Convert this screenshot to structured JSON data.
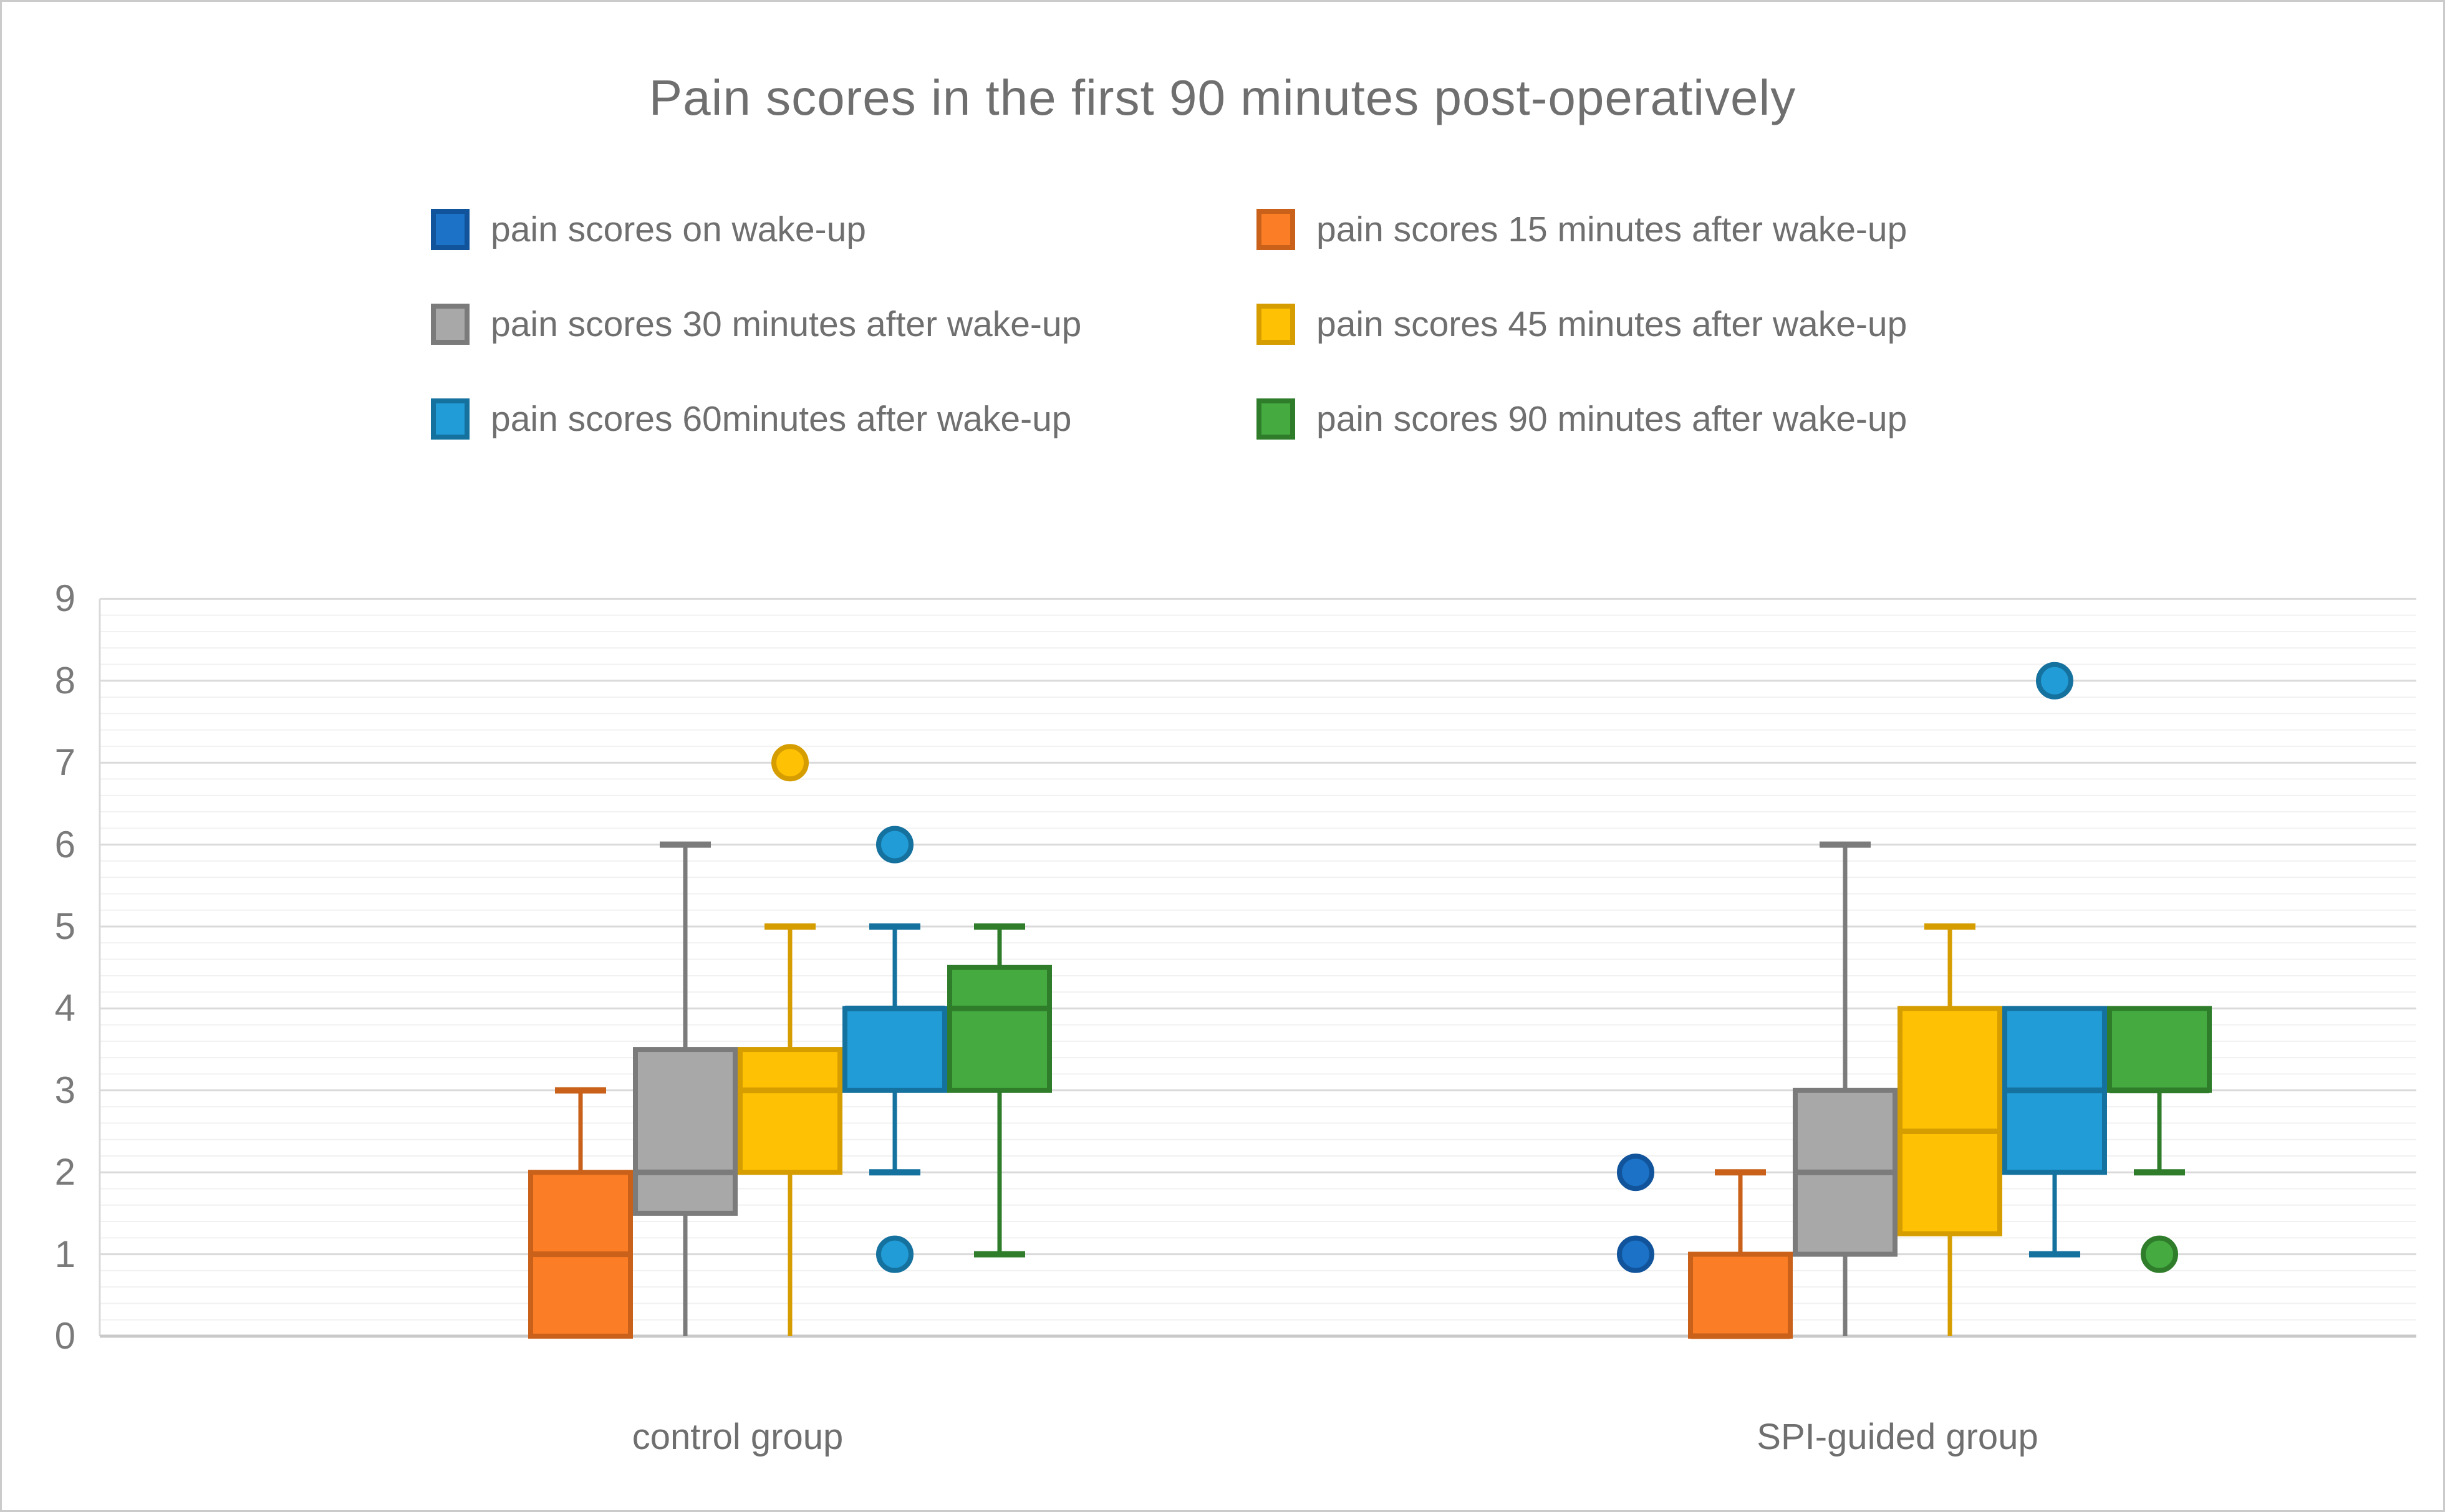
{
  "chart_data": {
    "type": "boxplot",
    "title": "Pain scores in the first 90 minutes post-operatively",
    "categories": [
      "control group",
      "SPI-guided group"
    ],
    "legend_position": "top",
    "grid": "major and minor horizontal gridlines",
    "y_axis": {
      "min": 0,
      "max": 9,
      "major_unit": 1,
      "minor_unit": 0.2,
      "tick_labels": [
        "0",
        "1",
        "2",
        "3",
        "4",
        "5",
        "6",
        "7",
        "8",
        "9"
      ]
    },
    "colors": {
      "grid_major": "#dadada",
      "grid_minor": "#f1f1f1",
      "axis_line": "#c9c9c9",
      "text": "#6f6f6f"
    },
    "series": [
      {
        "name": "pain scores on wake-up",
        "fill": "#1b72c6",
        "border": "#11549b",
        "groups": [
          null,
          {
            "q1": null,
            "median": null,
            "q3": null,
            "whisker_low": null,
            "whisker_high": null,
            "outliers": [
              2,
              1
            ]
          }
        ]
      },
      {
        "name": "pain scores 15 minutes after wake-up",
        "fill": "#fb7d26",
        "border": "#c9611a",
        "groups": [
          {
            "q1": 0,
            "median": 1,
            "q3": 2,
            "whisker_low": 0,
            "whisker_high": 3,
            "outliers": []
          },
          {
            "q1": 0,
            "median": 0,
            "q3": 1,
            "whisker_low": 0,
            "whisker_high": 2,
            "outliers": []
          }
        ]
      },
      {
        "name": "pain scores 30 minutes after wake-up",
        "fill": "#a8a8a8",
        "border": "#7b7b7b",
        "groups": [
          {
            "q1": 1.5,
            "median": 2,
            "q3": 3.5,
            "whisker_low": 0,
            "whisker_high": 6,
            "outliers": []
          },
          {
            "q1": 1,
            "median": 2,
            "q3": 3,
            "whisker_low": 0,
            "whisker_high": 6,
            "outliers": []
          }
        ]
      },
      {
        "name": "pain scores 45 minutes after wake-up",
        "fill": "#ffc103",
        "border": "#d59d00",
        "groups": [
          {
            "q1": 2,
            "median": 3,
            "q3": 3.5,
            "whisker_low": 0,
            "whisker_high": 5,
            "outliers": [
              7
            ]
          },
          {
            "q1": 1.25,
            "median": 2.5,
            "q3": 4,
            "whisker_low": 0,
            "whisker_high": 5,
            "outliers": []
          }
        ]
      },
      {
        "name": "pain scores 60minutes after wake-up",
        "fill": "#219cd7",
        "border": "#15719e",
        "groups": [
          {
            "q1": 3,
            "median": 4,
            "q3": 4,
            "whisker_low": 2,
            "whisker_high": 5,
            "outliers": [
              6,
              1
            ]
          },
          {
            "q1": 2,
            "median": 3,
            "q3": 4,
            "whisker_low": 1,
            "whisker_high": 4,
            "outliers": [
              8
            ]
          }
        ]
      },
      {
        "name": "pain scores 90 minutes after wake-up",
        "fill": "#45ab41",
        "border": "#2f7d2b",
        "groups": [
          {
            "q1": 3,
            "median": 4,
            "q3": 4.5,
            "whisker_low": 1,
            "whisker_high": 5,
            "outliers": []
          },
          {
            "q1": 3,
            "median": 3,
            "q3": 4,
            "whisker_low": 2,
            "whisker_high": 4,
            "outliers": [
              1
            ]
          }
        ]
      }
    ]
  }
}
